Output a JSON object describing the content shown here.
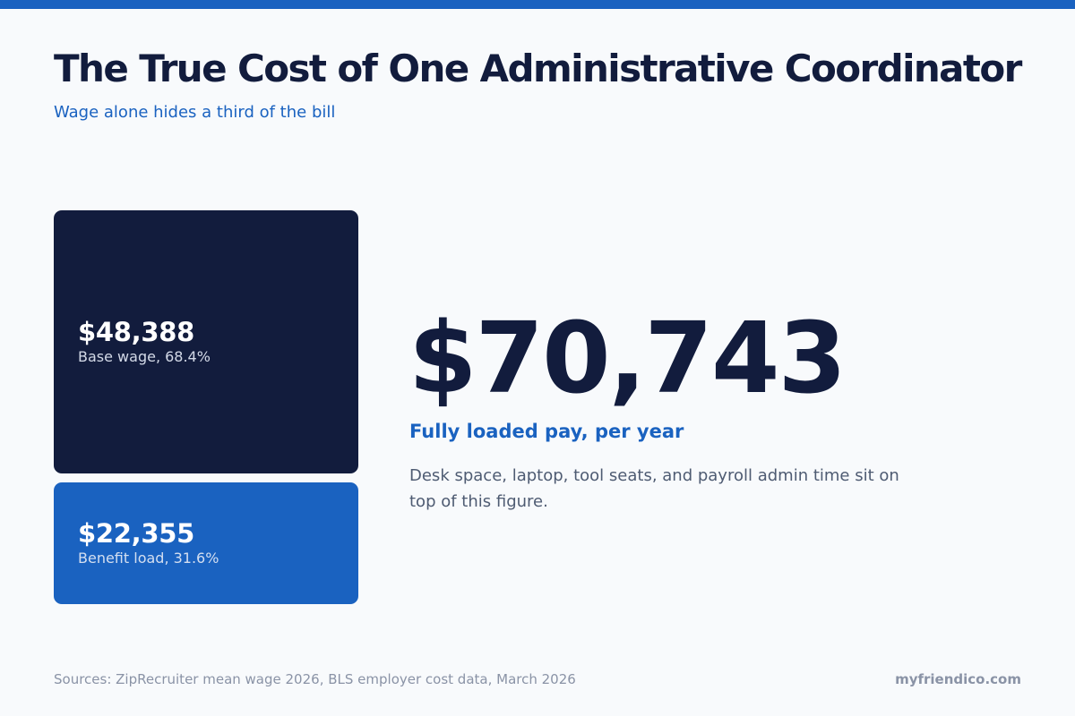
{
  "header": {
    "title": "The True Cost of One Administrative Coordinator",
    "subtitle": "Wage alone hides a third of the bill"
  },
  "colors": {
    "accent_bar": "#1a62c0",
    "title": "#121c3d",
    "base_wage_segment": "#121c3d",
    "benefit_load_segment": "#1a62c0"
  },
  "chart_data": {
    "type": "bar",
    "orientation": "stacked-vertical",
    "title": "",
    "xlabel": "",
    "ylabel": "",
    "unit": "USD per year",
    "total": 70743,
    "total_label": "$70,743",
    "series": [
      {
        "name": "Base wage",
        "value": 48388,
        "value_label": "$48,388",
        "share": 68.4,
        "label": "Base wage, 68.4%",
        "color": "#121c3d"
      },
      {
        "name": "Benefit load",
        "value": 22355,
        "value_label": "$22,355",
        "share": 31.6,
        "label": "Benefit load, 31.6%",
        "color": "#1a62c0"
      }
    ]
  },
  "summary": {
    "total_value": "$70,743",
    "total_label": "Fully loaded pay, per year",
    "note": "Desk space, laptop, tool seats, and payroll admin time sit on top of this figure."
  },
  "footer": {
    "sources": "Sources: ZipRecruiter mean wage 2026, BLS employer cost data, March 2026",
    "brand": "myfriendico.com"
  }
}
